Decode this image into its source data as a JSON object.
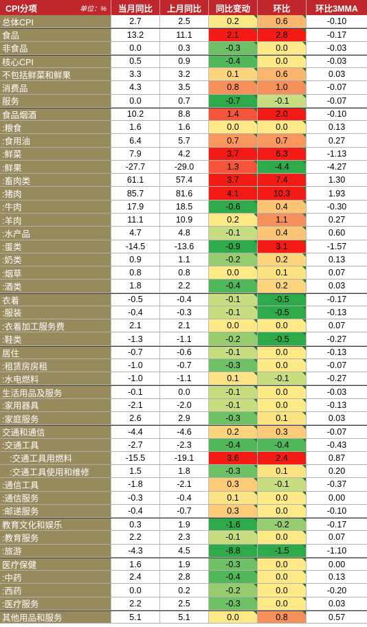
{
  "header": {
    "category": "CPI分项",
    "unit": "单位：%",
    "cur_yoy": "当月同比",
    "prev_yoy": "上月同比",
    "yoy_change": "同比变动",
    "mom": "环比",
    "mom_3mma": "环比3MMA"
  },
  "colors": {
    "header_bg": "#c0272d",
    "label_bg": "#978a5d",
    "scale_low": "#2eaa4a",
    "scale_mid": "#ffe98a",
    "scale_high": "#f41b14"
  },
  "rows": [
    {
      "name": "总体CPI",
      "cur": "2.7",
      "prev": "2.5",
      "chg": "0.2",
      "mom": "0.6",
      "mma": "-0.10",
      "sep": true,
      "chg_c": "#fce985",
      "mom_c": "#fbb66e"
    },
    {
      "name": "食品",
      "cur": "13.2",
      "prev": "11.1",
      "chg": "2.1",
      "mom": "2.8",
      "mma": "-0.17",
      "sep": true,
      "chg_c": "#f41b14",
      "mom_c": "#f41b14"
    },
    {
      "name": "非食品",
      "cur": "0.0",
      "prev": "0.3",
      "chg": "-0.3",
      "mom": "0.0",
      "mma": "-0.03",
      "chg_c": "#6dc064",
      "mom_c": "#fde986"
    },
    {
      "name": "核心CPI",
      "cur": "0.5",
      "prev": "0.9",
      "chg": "-0.4",
      "mom": "0.0",
      "mma": "-0.03",
      "sep": true,
      "chg_c": "#51b85a",
      "mom_c": "#fde986"
    },
    {
      "name": "不包括鲜菜和鲜果",
      "cur": "3.3",
      "prev": "3.2",
      "chg": "0.1",
      "mom": "0.6",
      "mma": "0.03",
      "chg_c": "#fbd47c",
      "mom_c": "#fbb66e"
    },
    {
      "name": "消费品",
      "cur": "4.3",
      "prev": "3.5",
      "chg": "0.8",
      "mom": "1.0",
      "mma": "-0.07",
      "chg_c": "#f6905a",
      "mom_c": "#f6905a"
    },
    {
      "name": "服务",
      "cur": "0.0",
      "prev": "0.7",
      "chg": "-0.7",
      "mom": "-0.1",
      "mma": "-0.07",
      "chg_c": "#2eaa4a",
      "mom_c": "#c7dd7f"
    },
    {
      "name": "食品烟酒",
      "cur": "10.2",
      "prev": "8.8",
      "chg": "1.4",
      "mom": "2.0",
      "mma": "-0.10",
      "sep": true,
      "chg_c": "#f5553a",
      "mom_c": "#f41b14"
    },
    {
      "name": ":粮食",
      "cur": "1.6",
      "prev": "1.6",
      "chg": "0.0",
      "mom": "0.0",
      "mma": "0.13",
      "chg_c": "#fde986",
      "mom_c": "#fde986"
    },
    {
      "name": ":食用油",
      "cur": "6.4",
      "prev": "5.7",
      "chg": "0.7",
      "mom": "0.7",
      "mma": "0.27",
      "chg_c": "#f7965d",
      "mom_c": "#f7965d"
    },
    {
      "name": ":鲜菜",
      "cur": "7.9",
      "prev": "4.2",
      "chg": "3.7",
      "mom": "6.3",
      "mma": "-1.13",
      "chg_c": "#f41b14",
      "mom_c": "#f41b14"
    },
    {
      "name": ":鲜果",
      "cur": "-27.7",
      "prev": "-29.0",
      "chg": "1.3",
      "mom": "-4.4",
      "mma": "-4.27",
      "chg_c": "#f5553a",
      "mom_c": "#2eaa4a"
    },
    {
      "name": ":畜肉类",
      "cur": "61.1",
      "prev": "57.4",
      "chg": "3.7",
      "mom": "7.4",
      "mma": "1.30",
      "chg_c": "#f41b14",
      "mom_c": "#f41b14"
    },
    {
      "name": ":猪肉",
      "cur": "85.7",
      "prev": "81.6",
      "chg": "4.1",
      "mom": "10.3",
      "mma": "1.93",
      "chg_c": "#f41b14",
      "mom_c": "#f41b14"
    },
    {
      "name": ":牛肉",
      "cur": "17.9",
      "prev": "18.5",
      "chg": "-0.6",
      "mom": "0.4",
      "mma": "-0.30",
      "chg_c": "#2eaa4a",
      "mom_c": "#fbc574"
    },
    {
      "name": ":羊肉",
      "cur": "11.1",
      "prev": "10.9",
      "chg": "0.2",
      "mom": "1.1",
      "mma": "0.27",
      "chg_c": "#fce985",
      "mom_c": "#f6905a"
    },
    {
      "name": ":水产品",
      "cur": "4.7",
      "prev": "4.8",
      "chg": "-0.1",
      "mom": "0.4",
      "mma": "0.60",
      "chg_c": "#c7dd7f",
      "mom_c": "#fbc574"
    },
    {
      "name": ":蛋类",
      "cur": "-14.5",
      "prev": "-13.6",
      "chg": "-0.9",
      "mom": "3.1",
      "mma": "-1.57",
      "chg_c": "#2eaa4a",
      "mom_c": "#f41b14"
    },
    {
      "name": ":奶类",
      "cur": "0.9",
      "prev": "1.1",
      "chg": "-0.2",
      "mom": "0.2",
      "mma": "0.13",
      "chg_c": "#97cc6e",
      "mom_c": "#fcd47c"
    },
    {
      "name": ":烟草",
      "cur": "0.8",
      "prev": "0.8",
      "chg": "0.0",
      "mom": "0.1",
      "mma": "0.07",
      "chg_c": "#fde986",
      "mom_c": "#fce382"
    },
    {
      "name": ":酒类",
      "cur": "1.8",
      "prev": "2.2",
      "chg": "-0.4",
      "mom": "0.2",
      "mma": "0.03",
      "chg_c": "#51b85a",
      "mom_c": "#fcd47c"
    },
    {
      "name": "衣着",
      "cur": "-0.5",
      "prev": "-0.4",
      "chg": "-0.1",
      "mom": "-0.5",
      "mma": "-0.17",
      "sep": true,
      "chg_c": "#c7dd7f",
      "mom_c": "#2eaa4a"
    },
    {
      "name": ":服装",
      "cur": "-0.4",
      "prev": "-0.3",
      "chg": "-0.1",
      "mom": "-0.5",
      "mma": "-0.13",
      "chg_c": "#c7dd7f",
      "mom_c": "#2eaa4a"
    },
    {
      "name": ":衣着加工服务费",
      "cur": "2.1",
      "prev": "2.1",
      "chg": "0.0",
      "mom": "0.0",
      "mma": "0.07",
      "chg_c": "#fde986",
      "mom_c": "#fde986"
    },
    {
      "name": ":鞋类",
      "cur": "-1.3",
      "prev": "-1.1",
      "chg": "-0.2",
      "mom": "-0.5",
      "mma": "-0.27",
      "chg_c": "#97cc6e",
      "mom_c": "#2eaa4a"
    },
    {
      "name": "居住",
      "cur": "-0.7",
      "prev": "-0.6",
      "chg": "-0.1",
      "mom": "0.0",
      "mma": "-0.13",
      "sep": true,
      "chg_c": "#c7dd7f",
      "mom_c": "#fde986"
    },
    {
      "name": ":租赁房房租",
      "cur": "-1.0",
      "prev": "-0.7",
      "chg": "-0.3",
      "mom": "0.0",
      "mma": "-0.07",
      "chg_c": "#6dc064",
      "mom_c": "#fde986"
    },
    {
      "name": ":水电燃料",
      "cur": "-1.0",
      "prev": "-1.1",
      "chg": "0.1",
      "mom": "-0.1",
      "mma": "-0.27",
      "chg_c": "#fce385",
      "mom_c": "#c7dd7f"
    },
    {
      "name": "生活用品及服务",
      "cur": "-0.1",
      "prev": "0.0",
      "chg": "-0.1",
      "mom": "0.0",
      "mma": "-0.03",
      "sep": true,
      "chg_c": "#c7dd7f",
      "mom_c": "#fde986"
    },
    {
      "name": ":家用器具",
      "cur": "-2.1",
      "prev": "-2.0",
      "chg": "-0.1",
      "mom": "0.0",
      "mma": "-0.13",
      "chg_c": "#c7dd7f",
      "mom_c": "#fde986"
    },
    {
      "name": ":家庭服务",
      "cur": "2.6",
      "prev": "2.9",
      "chg": "-0.3",
      "mom": "0.1",
      "mma": "0.03",
      "chg_c": "#6dc064",
      "mom_c": "#fce382"
    },
    {
      "name": "交通和通信",
      "cur": "-4.4",
      "prev": "-4.6",
      "chg": "0.2",
      "mom": "0.3",
      "mma": "-0.07",
      "sep": true,
      "chg_c": "#fcd47c",
      "mom_c": "#fccb78"
    },
    {
      "name": ":交通工具",
      "cur": "-2.7",
      "prev": "-2.3",
      "chg": "-0.4",
      "mom": "-0.4",
      "mma": "-0.43",
      "chg_c": "#51b85a",
      "mom_c": "#51b85a"
    },
    {
      "name": "  :交通工具用燃料",
      "cur": "-15.5",
      "prev": "-19.1",
      "chg": "3.6",
      "mom": "2.4",
      "mma": "0.87",
      "chg_c": "#f41b14",
      "mom_c": "#f41b14"
    },
    {
      "name": "  :交通工具使用和维修",
      "cur": "1.5",
      "prev": "1.8",
      "chg": "-0.3",
      "mom": "0.1",
      "mma": "0.20",
      "chg_c": "#6dc064",
      "mom_c": "#fce382"
    },
    {
      "name": ":通信工具",
      "cur": "-1.8",
      "prev": "-2.1",
      "chg": "0.3",
      "mom": "-0.1",
      "mma": "-0.37",
      "chg_c": "#fccb78",
      "mom_c": "#c7dd7f"
    },
    {
      "name": ":通信服务",
      "cur": "-0.3",
      "prev": "-0.4",
      "chg": "0.1",
      "mom": "0.0",
      "mma": "0.00",
      "chg_c": "#fce385",
      "mom_c": "#fde986"
    },
    {
      "name": ":邮递服务",
      "cur": "-0.4",
      "prev": "-0.7",
      "chg": "0.3",
      "mom": "0.0",
      "mma": "-0.10",
      "chg_c": "#fccb78",
      "mom_c": "#fde986"
    },
    {
      "name": "教育文化和娱乐",
      "cur": "0.3",
      "prev": "1.9",
      "chg": "-1.6",
      "mom": "-0.2",
      "mma": "-0.17",
      "sep": true,
      "chg_c": "#2eaa4a",
      "mom_c": "#97cc6e"
    },
    {
      "name": ":教育服务",
      "cur": "2.2",
      "prev": "2.3",
      "chg": "-0.1",
      "mom": "0.0",
      "mma": "0.07",
      "chg_c": "#c7dd7f",
      "mom_c": "#fde986"
    },
    {
      "name": ":旅游",
      "cur": "-4.3",
      "prev": "4.5",
      "chg": "-8.8",
      "mom": "-1.5",
      "mma": "-1.10",
      "chg_c": "#2eaa4a",
      "mom_c": "#2eaa4a"
    },
    {
      "name": "医疗保健",
      "cur": "1.6",
      "prev": "1.9",
      "chg": "-0.3",
      "mom": "0.0",
      "mma": "0.00",
      "sep": true,
      "chg_c": "#6dc064",
      "mom_c": "#fde986"
    },
    {
      "name": ":中药",
      "cur": "2.4",
      "prev": "2.8",
      "chg": "-0.4",
      "mom": "0.0",
      "mma": "0.13",
      "chg_c": "#51b85a",
      "mom_c": "#fde986"
    },
    {
      "name": ":西药",
      "cur": "0.0",
      "prev": "0.2",
      "chg": "-0.2",
      "mom": "0.0",
      "mma": "-0.20",
      "chg_c": "#97cc6e",
      "mom_c": "#fde986"
    },
    {
      "name": ":医疗服务",
      "cur": "2.2",
      "prev": "2.5",
      "chg": "-0.3",
      "mom": "0.0",
      "mma": "0.03",
      "chg_c": "#6dc064",
      "mom_c": "#fde986"
    },
    {
      "name": "其他用品和服务",
      "cur": "5.1",
      "prev": "5.1",
      "chg": "0.0",
      "mom": "0.8",
      "mma": "0.57",
      "sep": true,
      "chg_c": "#fde986",
      "mom_c": "#f6905a"
    }
  ]
}
